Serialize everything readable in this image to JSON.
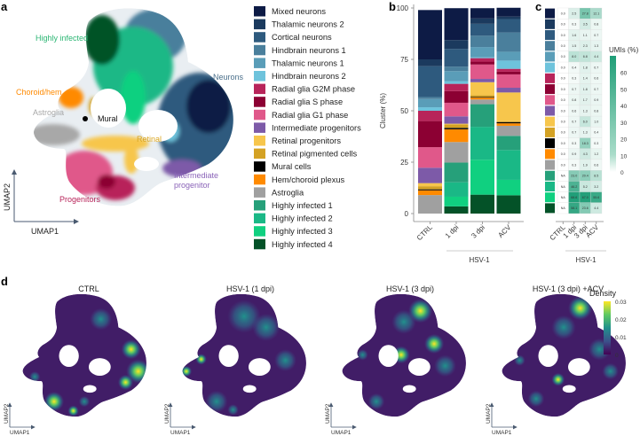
{
  "panels": {
    "a": "a",
    "b": "b",
    "c": "c",
    "d": "d"
  },
  "umap": {
    "x_label": "UMAP1",
    "y_label": "UMAP2",
    "annotations": [
      {
        "text": "Highly infected",
        "color": "#2bb673"
      },
      {
        "text": "Neurons",
        "color": "#4a6f8a"
      },
      {
        "text": "Choroid/hem",
        "color": "#ff8a00"
      },
      {
        "text": "Astroglia",
        "color": "#a8a8a8"
      },
      {
        "text": "Mural",
        "color": "#111111"
      },
      {
        "text": "Retinal",
        "color": "#d9a520"
      },
      {
        "text": "Intermediate",
        "color": "#8a63b8"
      },
      {
        "text": "progenitor",
        "color": "#8a63b8"
      },
      {
        "text": "Progenitors",
        "color": "#b8245a"
      }
    ]
  },
  "clusters": [
    {
      "name": "Mixed neurons",
      "color": "#0d1b45"
    },
    {
      "name": "Thalamic neurons 2",
      "color": "#1b3a5e"
    },
    {
      "name": "Cortical neurons",
      "color": "#2e5a7e"
    },
    {
      "name": "Hindbrain neurons 1",
      "color": "#4a7f9c"
    },
    {
      "name": "Thalamic neurons 1",
      "color": "#5a9db8"
    },
    {
      "name": "Hindbrain neurons 2",
      "color": "#6ec3dc"
    },
    {
      "name": "Radial glia G2M phase",
      "color": "#b8245a"
    },
    {
      "name": "Radial glia S phase",
      "color": "#8c0033"
    },
    {
      "name": "Radial glia G1 phase",
      "color": "#e0588a"
    },
    {
      "name": "Intermediate progenitors",
      "color": "#7d5aa8"
    },
    {
      "name": "Retinal progenitors",
      "color": "#f7c64c"
    },
    {
      "name": "Retinal pigmented cells",
      "color": "#d4a224"
    },
    {
      "name": "Mural cells",
      "color": "#000000"
    },
    {
      "name": "Hem/choroid plexus",
      "color": "#ff8a00"
    },
    {
      "name": "Astroglia",
      "color": "#a0a0a0"
    },
    {
      "name": "Highly infected 1",
      "color": "#26a07a"
    },
    {
      "name": "Highly infected 2",
      "color": "#1ab886"
    },
    {
      "name": "Highly infected 3",
      "color": "#10d080"
    },
    {
      "name": "Highly infected 4",
      "color": "#045228"
    }
  ],
  "chart_data": [
    {
      "type": "bar",
      "stacked": true,
      "title": "",
      "ylabel": "Cluster (%)",
      "xlabel": "",
      "ylim": [
        0,
        100
      ],
      "yticks": [
        "0",
        "25",
        "50",
        "75",
        "100"
      ],
      "categories": [
        "CTRL",
        "1 dpi",
        "3 dpi",
        "ACV"
      ],
      "group_label": "HSV-1",
      "series_order": "legend order (clusters), stacked bottom-up from last cluster",
      "values": [
        [
          24,
          3.3,
          15,
          1,
          4,
          1.7,
          5,
          12.7,
          10,
          7.5,
          1.5,
          1.5,
          0.5,
          2.3,
          9,
          0,
          0,
          0,
          0
        ],
        [
          15.5,
          4.3,
          8.6,
          2.2,
          4.9,
          1.3,
          3.5,
          5.7,
          6.6,
          3.6,
          0.3,
          1.7,
          0.7,
          6.2,
          10,
          9.6,
          7,
          4.7,
          3.5
        ],
        [
          5,
          2.6,
          5.8,
          5.5,
          5,
          0.4,
          1.7,
          1.4,
          7,
          1.6,
          6.3,
          0.9,
          0.3,
          0.9,
          2.3,
          11,
          16,
          17,
          9.2
        ],
        [
          4.3,
          1.2,
          6.5,
          9.4,
          4.3,
          4,
          1.4,
          1.3,
          6.5,
          2.3,
          14,
          0.4,
          0.6,
          1.2,
          4.9,
          6.9,
          14.5,
          7.5,
          8.9
        ]
      ]
    },
    {
      "type": "heatmap",
      "title": "",
      "columns": [
        "CTRL",
        "1 dpi",
        "3 dpi",
        "ACV"
      ],
      "group_label": "HSV-1",
      "colorbar_label": "UMIs (%)",
      "colorbar_ticks": [
        "0",
        "10",
        "20",
        "30",
        "40",
        "50",
        "60"
      ],
      "range": [
        0,
        70
      ],
      "low_color": "#ffffff",
      "high_color": "#1f9e77",
      "cells": [
        [
          "0.0",
          "2.5",
          "27.8",
          "12.1"
        ],
        [
          "0.0",
          "0.3",
          "3.5",
          "0.8"
        ],
        [
          "0.0",
          "1.6",
          "1.1",
          "0.7"
        ],
        [
          "0.0",
          "1.5",
          "2.3",
          "1.3"
        ],
        [
          "0.0",
          "8.0",
          "6.8",
          "4.4"
        ],
        [
          "0.0",
          "0.4",
          "1.8",
          "0.7"
        ],
        [
          "0.0",
          "0.3",
          "1.4",
          "0.6"
        ],
        [
          "0.0",
          "0.7",
          "1.8",
          "0.7"
        ],
        [
          "0.0",
          "0.8",
          "1.7",
          "0.9"
        ],
        [
          "0.0",
          "0.6",
          "1.3",
          "0.8"
        ],
        [
          "0.0",
          "0.7",
          "6.0",
          "1.0"
        ],
        [
          "0.0",
          "0.7",
          "1.3",
          "0.4"
        ],
        [
          "0.0",
          "0.3",
          "18.3",
          "0.3"
        ],
        [
          "0.0",
          "0.9",
          "4.3",
          "1.2"
        ],
        [
          "0.0",
          "0.3",
          "1.9",
          "0.6"
        ],
        [
          "NA",
          "23.0",
          "20.4",
          "8.5"
        ],
        [
          "NA",
          "46.2",
          "5.2",
          "3.2"
        ],
        [
          "NA",
          "68.6",
          "67.0",
          "55.6"
        ],
        [
          "NA",
          "58.1",
          "23.6",
          "4.4"
        ]
      ]
    },
    {
      "type": "heatmap",
      "subtype": "density-umap",
      "titles": [
        "CTRL",
        "HSV-1 (1 dpi)",
        "HSV-1 (3 dpi)",
        "HSV-1 (3 dpi) +ACV"
      ],
      "colorbar_label": "Density",
      "colorbar_ticks": [
        "0",
        "0.01",
        "0.02",
        "0.03"
      ],
      "range": [
        0,
        0.03
      ],
      "x_label": "UMAP1",
      "y_label": "UMAP2"
    }
  ]
}
